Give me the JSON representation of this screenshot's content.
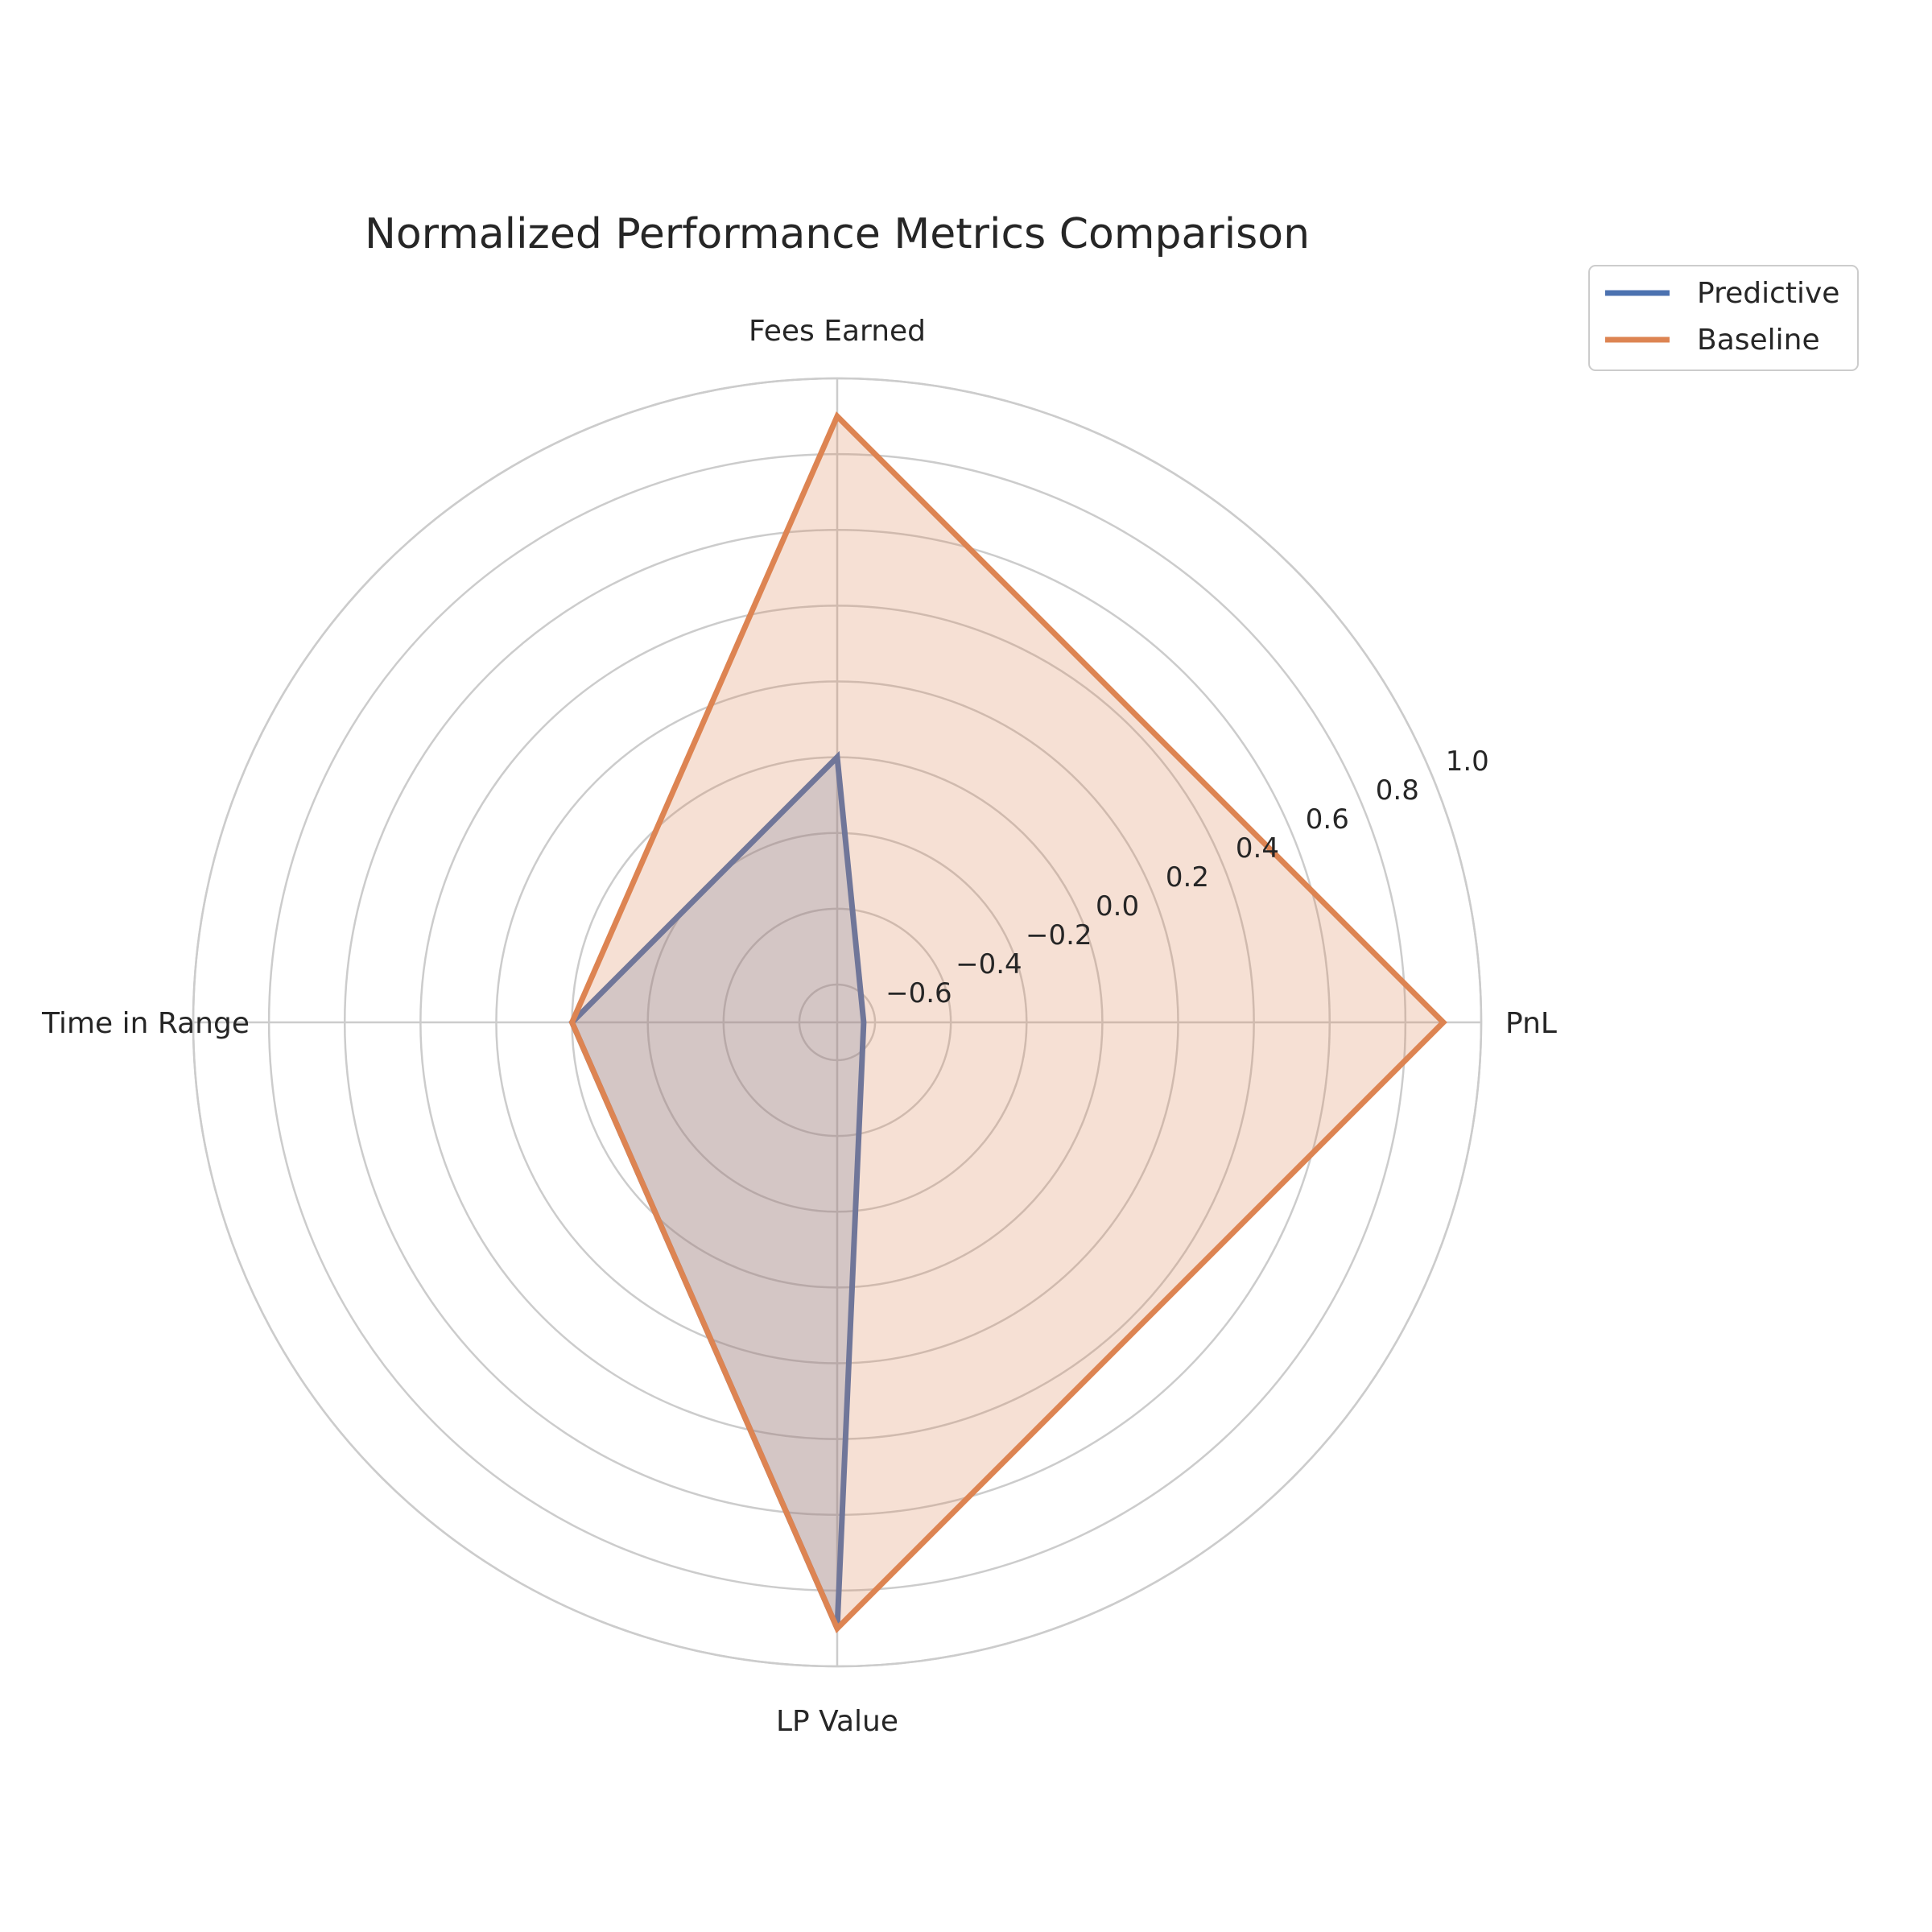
{
  "chart_data": {
    "type": "radar",
    "title": "Normalized Performance Metrics Comparison",
    "categories": [
      "PnL",
      "Fees Earned",
      "Time in Range",
      "LP Value"
    ],
    "rlim": [
      -0.7,
      1.0
    ],
    "rticks": [
      -0.6,
      -0.4,
      -0.2,
      0.0,
      0.2,
      0.4,
      0.6,
      0.8,
      1.0
    ],
    "rtick_labels": [
      "−0.6",
      "−0.4",
      "−0.2",
      "0.0",
      "0.2",
      "0.4",
      "0.6",
      "0.8",
      "1.0"
    ],
    "grid": true,
    "legend_position": "top-right",
    "series": [
      {
        "name": "Predictive",
        "values": [
          -0.63,
          0.0,
          0.0,
          0.9
        ],
        "color": "#4c72b0"
      },
      {
        "name": "Baseline",
        "values": [
          0.9,
          0.9,
          0.0,
          0.9
        ],
        "color": "#dd8452"
      }
    ]
  }
}
